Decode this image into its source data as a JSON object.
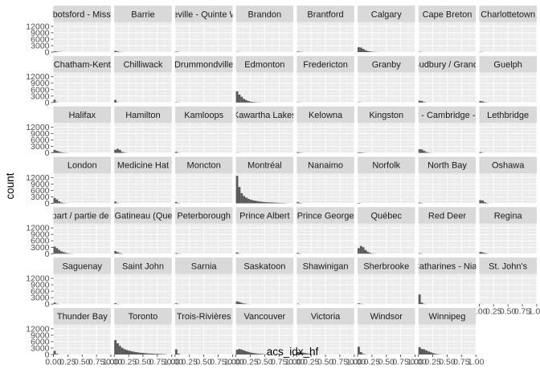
{
  "colors": {
    "panel_bg": "#ebebeb",
    "strip_bg": "#d9d9d9",
    "grid_major": "#ffffff",
    "bar_fill": "#595959"
  },
  "chart_data": {
    "type": "bar",
    "subtype": "faceted-histogram",
    "xlabel": "acs_idx_hf",
    "ylabel": "count",
    "x_ticks": [
      "0.00",
      "0.25",
      "0.50",
      "0.75",
      "1.00"
    ],
    "y_ticks": [
      "0",
      "3000",
      "6000",
      "9000",
      "12000"
    ],
    "xlim": [
      0,
      1
    ],
    "ylim": [
      0,
      14000
    ],
    "grid": true,
    "bin_width": 0.04,
    "facet_columns": 8,
    "panels": [
      {
        "name": "Abbotsford - Mission",
        "values": [
          400,
          250,
          100,
          50
        ]
      },
      {
        "name": "Barrie",
        "values": [
          600,
          300,
          100,
          50
        ]
      },
      {
        "name": "Belleville - Quinte West",
        "values": [
          200,
          100
        ]
      },
      {
        "name": "Brandon",
        "values": [
          100,
          50
        ]
      },
      {
        "name": "Brantford",
        "values": [
          250,
          120,
          50
        ]
      },
      {
        "name": "Calgary",
        "values": [
          2300,
          2100,
          1500,
          900,
          500,
          300,
          150,
          80,
          40,
          20
        ]
      },
      {
        "name": "Cape Breton",
        "values": [
          150,
          50
        ]
      },
      {
        "name": "Charlottetown",
        "values": [
          100,
          50
        ]
      },
      {
        "name": "Chatham-Kent",
        "values": [
          1300,
          150
        ]
      },
      {
        "name": "Chilliwack",
        "values": [
          1200,
          100
        ]
      },
      {
        "name": "Drummondville",
        "values": [
          150,
          50
        ]
      },
      {
        "name": "Edmonton",
        "values": [
          5200,
          3700,
          2700,
          1700,
          1100,
          700,
          400,
          250,
          150,
          80,
          40
        ]
      },
      {
        "name": "Fredericton",
        "values": [
          100,
          50
        ]
      },
      {
        "name": "Granby",
        "values": [
          100,
          50
        ]
      },
      {
        "name": "Greater Sudbury / Grand Sudbury",
        "values": [
          900,
          700,
          200,
          50
        ]
      },
      {
        "name": "Guelph",
        "values": [
          700,
          500,
          150,
          50
        ]
      },
      {
        "name": "Halifax",
        "values": [
          1400,
          1000,
          600,
          300,
          150,
          80,
          40
        ]
      },
      {
        "name": "Hamilton",
        "values": [
          1500,
          1900,
          1400,
          500,
          150,
          50
        ]
      },
      {
        "name": "Kamloops",
        "values": [
          500,
          100
        ]
      },
      {
        "name": "Kawartha Lakes",
        "values": [
          100,
          50
        ]
      },
      {
        "name": "Kelowna",
        "values": [
          350,
          150,
          50
        ]
      },
      {
        "name": "Kingston",
        "values": [
          300,
          250,
          100,
          50
        ]
      },
      {
        "name": "Kitchener - Cambridge - Waterloo",
        "values": [
          1700,
          1600,
          1000,
          400,
          150,
          50
        ]
      },
      {
        "name": "Lethbridge",
        "values": [
          400,
          100
        ]
      },
      {
        "name": "London",
        "values": [
          2500,
          1800,
          900,
          400,
          150,
          80,
          40
        ]
      },
      {
        "name": "Medicine Hat",
        "values": [
          800,
          150
        ]
      },
      {
        "name": "Moncton",
        "values": [
          600,
          100
        ]
      },
      {
        "name": "Montréal",
        "values": [
          12800,
          7600,
          4700,
          3400,
          2700,
          2100,
          1700,
          1400,
          1200,
          1000,
          850,
          700,
          600,
          500,
          450,
          400,
          350,
          300,
          250,
          200,
          150,
          100
        ]
      },
      {
        "name": "Nanaimo",
        "values": [
          600,
          200,
          50
        ]
      },
      {
        "name": "Norfolk",
        "values": [
          200,
          50
        ]
      },
      {
        "name": "North Bay",
        "values": [
          300,
          100
        ]
      },
      {
        "name": "Oshawa",
        "values": [
          1500,
          1300,
          500,
          150
        ]
      },
      {
        "name": "Ontario part / partie de l'Ontario",
        "values": [
          3300,
          2600,
          1800,
          1100,
          700,
          400,
          200,
          100,
          50
        ]
      },
      {
        "name": "Ottawa - Gatineau (Quebec part)",
        "values": [
          1200,
          700,
          300,
          100
        ]
      },
      {
        "name": "Peterborough",
        "values": [
          300,
          150,
          50
        ]
      },
      {
        "name": "Prince Albert",
        "values": [
          600,
          100
        ]
      },
      {
        "name": "Prince George",
        "values": [
          400,
          100
        ]
      },
      {
        "name": "Québec",
        "values": [
          2600,
          3600,
          3000,
          1700,
          900,
          400,
          150,
          50
        ]
      },
      {
        "name": "Red Deer",
        "values": [
          250,
          100
        ]
      },
      {
        "name": "Regina",
        "values": [
          800,
          600,
          300,
          100
        ]
      },
      {
        "name": "Saguenay",
        "values": [
          700,
          200,
          50
        ]
      },
      {
        "name": "Saint John",
        "values": [
          400,
          100
        ]
      },
      {
        "name": "Sarnia",
        "values": [
          350,
          100
        ]
      },
      {
        "name": "Saskatoon",
        "values": [
          1300,
          1000,
          600,
          300,
          150,
          50
        ]
      },
      {
        "name": "Shawinigan",
        "values": [
          200,
          50
        ]
      },
      {
        "name": "Sherbrooke",
        "values": [
          350,
          150,
          50
        ]
      },
      {
        "name": "St. Catharines - Niagara",
        "values": [
          4500,
          700,
          150,
          50
        ]
      },
      {
        "name": "St. John's",
        "values": [
          100,
          50
        ]
      },
      {
        "name": "Thunder Bay",
        "values": [
          1700,
          300,
          50
        ]
      },
      {
        "name": "Toronto",
        "values": [
          6700,
          5200,
          4000,
          3100,
          2500,
          2100,
          1800,
          1500,
          1300,
          1100,
          950,
          800,
          700,
          600,
          500,
          450,
          400,
          350,
          300,
          250,
          200,
          150,
          100
        ]
      },
      {
        "name": "Trois-Rivières",
        "values": [
          2400,
          400,
          50
        ]
      },
      {
        "name": "Vancouver",
        "values": [
          2200,
          2600,
          2300,
          1900,
          1500,
          1200,
          900,
          700,
          550,
          400,
          300,
          220,
          150,
          100,
          60,
          30
        ]
      },
      {
        "name": "Victoria",
        "values": [
          1100,
          1100,
          900,
          700,
          500,
          300,
          150,
          80
        ]
      },
      {
        "name": "Windsor",
        "values": [
          3600,
          1100,
          300,
          100
        ]
      },
      {
        "name": "Winnipeg",
        "values": [
          3400,
          2600,
          2400,
          1900,
          1400,
          1000,
          600,
          350,
          150,
          50
        ]
      }
    ]
  }
}
